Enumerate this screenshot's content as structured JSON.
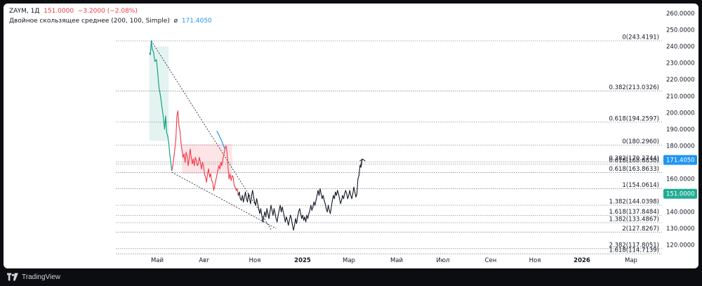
{
  "header": {
    "symbol": "ZAYM",
    "interval": "1Д",
    "last_price": "151.0000",
    "change": "−3.2000 (−2.08%)",
    "indicator_name": "Двойное скользящее среднее (200, 100, Simple)",
    "indicator_icon": "eye-slash-icon",
    "indicator_value": "171.4050"
  },
  "footer": {
    "brand": "TradingView",
    "brand_icon": "tradingview-logo-icon"
  },
  "colors": {
    "up": "#089981",
    "down": "#f23645",
    "price_line": "#131722",
    "ma_label": "#2196f3",
    "price_label": "#22ab94",
    "grid_dotted": "#787b86",
    "fill_green": "#e3f3ef",
    "fill_red": "#fde5e7"
  },
  "chart_data": {
    "type": "line",
    "title": "",
    "y_axis": {
      "side": "right",
      "ylim": [
        115,
        262
      ],
      "ticks": [
        "260.0000",
        "250.0000",
        "240.0000",
        "230.0000",
        "220.0000",
        "210.0000",
        "200.0000",
        "190.0000",
        "180.0000",
        "170.0000",
        "160.0000",
        "150.0000",
        "140.0000",
        "130.0000",
        "120.0000"
      ]
    },
    "x_axis": {
      "ticks": [
        "Май",
        "Авг",
        "Ноя",
        "2025",
        "Мар",
        "Май",
        "Июл",
        "Сен",
        "Ноя",
        "2026",
        "Мар"
      ],
      "bold_ticks": [
        "2025",
        "2026"
      ]
    },
    "price_labels": [
      {
        "value": 171.405,
        "text": "171.4050",
        "kind": "ma"
      },
      {
        "value": 151.0,
        "text": "151.0000",
        "kind": "last"
      }
    ],
    "fib_levels": [
      {
        "label": "0(243.4191)",
        "value": 243.4191,
        "group": "upper"
      },
      {
        "label": "0.382(213.0326)",
        "value": 213.0326,
        "group": "upper"
      },
      {
        "label": "0.618(194.2597)",
        "value": 194.2597,
        "group": "upper"
      },
      {
        "label": "0(180.2960)",
        "value": 180.296,
        "group": "upper"
      },
      {
        "label": "0.382(170.2744)",
        "value": 170.2744,
        "group": "lower"
      },
      {
        "label": "0.618(168.8830)",
        "value": 168.883,
        "group": "lower"
      },
      {
        "label": "0.618(163.8633)",
        "value": 163.8633,
        "group": "lower"
      },
      {
        "label": "1(154.0614)",
        "value": 154.0614,
        "group": "lower"
      },
      {
        "label": "1.382(144.0398)",
        "value": 144.0398,
        "group": "lower"
      },
      {
        "label": "1.618(137.8484)",
        "value": 137.8484,
        "group": "lower"
      },
      {
        "label": "1.382(133.4867)",
        "value": 133.4867,
        "group": "lower"
      },
      {
        "label": "2(127.8267)",
        "value": 127.8267,
        "group": "lower"
      },
      {
        "label": "2.382(117.8051)",
        "value": 117.8051,
        "group": "lower"
      },
      {
        "label": "1.618(114.7139)",
        "value": 114.7139,
        "group": "lower"
      }
    ],
    "series": [
      {
        "name": "ZAYM",
        "role": "price",
        "style": "green-red segments",
        "points": [
          [
            "2024-04-06",
            236
          ],
          [
            "2024-04-08",
            235
          ],
          [
            "2024-04-10",
            243.4
          ],
          [
            "2024-04-12",
            238
          ],
          [
            "2024-04-14",
            237
          ],
          [
            "2024-04-17",
            231
          ],
          [
            "2024-04-20",
            232
          ],
          [
            "2024-04-22",
            226
          ],
          [
            "2024-04-25",
            215
          ],
          [
            "2024-04-28",
            210
          ],
          [
            "2024-05-01",
            203
          ],
          [
            "2024-05-04",
            196
          ],
          [
            "2024-05-06",
            190
          ],
          [
            "2024-05-08",
            198
          ],
          [
            "2024-05-10",
            188
          ],
          [
            "2024-05-12",
            186
          ],
          [
            "2024-05-14",
            182
          ],
          [
            "2024-05-16",
            175
          ],
          [
            "2024-05-18",
            170
          ],
          [
            "2024-05-20",
            165
          ],
          [
            "2024-05-22",
            168
          ],
          [
            "2024-05-24",
            173
          ],
          [
            "2024-05-26",
            178
          ],
          [
            "2024-05-28",
            184
          ],
          [
            "2024-05-30",
            198
          ],
          [
            "2024-06-01",
            201
          ],
          [
            "2024-06-03",
            192
          ],
          [
            "2024-06-05",
            189
          ],
          [
            "2024-06-07",
            182
          ],
          [
            "2024-06-09",
            177
          ],
          [
            "2024-06-11",
            173
          ],
          [
            "2024-06-13",
            175
          ],
          [
            "2024-06-15",
            170
          ],
          [
            "2024-06-17",
            176
          ],
          [
            "2024-06-19",
            174
          ],
          [
            "2024-06-21",
            168
          ],
          [
            "2024-06-23",
            172
          ],
          [
            "2024-06-25",
            178
          ],
          [
            "2024-06-27",
            173
          ],
          [
            "2024-06-29",
            169
          ],
          [
            "2024-07-01",
            172
          ],
          [
            "2024-07-03",
            168
          ],
          [
            "2024-07-05",
            173
          ],
          [
            "2024-07-07",
            171
          ],
          [
            "2024-07-09",
            168
          ],
          [
            "2024-07-11",
            169
          ],
          [
            "2024-07-13",
            173
          ],
          [
            "2024-07-15",
            170
          ],
          [
            "2024-07-17",
            166
          ],
          [
            "2024-07-19",
            170
          ],
          [
            "2024-07-21",
            168
          ],
          [
            "2024-07-23",
            163
          ],
          [
            "2024-07-25",
            161
          ],
          [
            "2024-07-27",
            158
          ],
          [
            "2024-07-29",
            163
          ],
          [
            "2024-07-31",
            166
          ],
          [
            "2024-08-02",
            161
          ],
          [
            "2024-08-04",
            163
          ],
          [
            "2024-08-06",
            159
          ],
          [
            "2024-08-08",
            158
          ],
          [
            "2024-08-10",
            153
          ],
          [
            "2024-08-12",
            156
          ],
          [
            "2024-08-14",
            159
          ],
          [
            "2024-08-16",
            162
          ],
          [
            "2024-08-18",
            165
          ],
          [
            "2024-08-20",
            168
          ],
          [
            "2024-08-22",
            166
          ],
          [
            "2024-08-24",
            170
          ],
          [
            "2024-08-26",
            168
          ],
          [
            "2024-08-28",
            172
          ],
          [
            "2024-08-30",
            175
          ],
          [
            "2024-09-01",
            178
          ],
          [
            "2024-09-03",
            180
          ],
          [
            "2024-09-05",
            176
          ],
          [
            "2024-09-07",
            167
          ],
          [
            "2024-09-09",
            160
          ],
          [
            "2024-09-11",
            163
          ],
          [
            "2024-09-13",
            159
          ],
          [
            "2024-09-15",
            162
          ],
          [
            "2024-09-17",
            161
          ],
          [
            "2024-09-19",
            156
          ],
          [
            "2024-09-21",
            155
          ],
          [
            "2024-09-23",
            153
          ],
          [
            "2024-09-25",
            154
          ],
          [
            "2024-09-27",
            150
          ],
          [
            "2024-09-29",
            152
          ],
          [
            "2024-10-01",
            148
          ],
          [
            "2024-10-03",
            147
          ],
          [
            "2024-10-05",
            150
          ],
          [
            "2024-10-07",
            146
          ],
          [
            "2024-10-09",
            149
          ],
          [
            "2024-10-11",
            152
          ],
          [
            "2024-10-13",
            148
          ],
          [
            "2024-10-15",
            146
          ],
          [
            "2024-10-17",
            151
          ],
          [
            "2024-10-19",
            148
          ],
          [
            "2024-10-21",
            145
          ],
          [
            "2024-10-23",
            150
          ],
          [
            "2024-10-25",
            153
          ],
          [
            "2024-10-27",
            149
          ],
          [
            "2024-10-29",
            146
          ],
          [
            "2024-10-31",
            144
          ],
          [
            "2024-11-02",
            148
          ],
          [
            "2024-11-04",
            145
          ],
          [
            "2024-11-06",
            142
          ],
          [
            "2024-11-08",
            139
          ],
          [
            "2024-11-10",
            142
          ],
          [
            "2024-11-12",
            138
          ],
          [
            "2024-11-14",
            134
          ],
          [
            "2024-11-16",
            137
          ],
          [
            "2024-11-18",
            140
          ],
          [
            "2024-11-20",
            137
          ],
          [
            "2024-11-22",
            142
          ],
          [
            "2024-11-24",
            139
          ],
          [
            "2024-11-26",
            136
          ],
          [
            "2024-11-28",
            140
          ],
          [
            "2024-11-30",
            144
          ],
          [
            "2024-12-02",
            141
          ],
          [
            "2024-12-04",
            138
          ],
          [
            "2024-12-06",
            142
          ],
          [
            "2024-12-08",
            139
          ],
          [
            "2024-12-10",
            136
          ],
          [
            "2024-12-12",
            134
          ],
          [
            "2024-12-14",
            138
          ],
          [
            "2024-12-16",
            141
          ],
          [
            "2024-12-18",
            144
          ],
          [
            "2024-12-20",
            140
          ],
          [
            "2024-12-22",
            143
          ],
          [
            "2024-12-24",
            140
          ],
          [
            "2024-12-26",
            137
          ],
          [
            "2024-12-28",
            134
          ],
          [
            "2024-12-30",
            137
          ],
          [
            "2025-01-01",
            135
          ],
          [
            "2025-01-03",
            132
          ],
          [
            "2025-01-05",
            135
          ],
          [
            "2025-01-07",
            138
          ],
          [
            "2025-01-09",
            136
          ],
          [
            "2025-01-11",
            132
          ],
          [
            "2025-01-13",
            129
          ],
          [
            "2025-01-15",
            132
          ],
          [
            "2025-01-17",
            136
          ],
          [
            "2025-01-19",
            133
          ],
          [
            "2025-01-21",
            137
          ],
          [
            "2025-01-23",
            140
          ],
          [
            "2025-01-25",
            142
          ],
          [
            "2025-01-27",
            139
          ],
          [
            "2025-01-29",
            136
          ],
          [
            "2025-01-31",
            138
          ],
          [
            "2025-02-02",
            135
          ],
          [
            "2025-02-04",
            137
          ],
          [
            "2025-02-06",
            134
          ],
          [
            "2025-02-08",
            138
          ],
          [
            "2025-02-10",
            136
          ],
          [
            "2025-02-12",
            139
          ],
          [
            "2025-02-14",
            141
          ],
          [
            "2025-02-16",
            144
          ],
          [
            "2025-02-18",
            141
          ],
          [
            "2025-02-20",
            143
          ],
          [
            "2025-02-22",
            146
          ],
          [
            "2025-02-24",
            144
          ],
          [
            "2025-02-26",
            147
          ],
          [
            "2025-02-28",
            150
          ],
          [
            "2025-03-02",
            153
          ],
          [
            "2025-03-04",
            150
          ],
          [
            "2025-03-06",
            154
          ],
          [
            "2025-03-08",
            151
          ],
          [
            "2025-03-10",
            148
          ],
          [
            "2025-03-12",
            150
          ],
          [
            "2025-03-14",
            147
          ],
          [
            "2025-03-16",
            145
          ],
          [
            "2025-03-18",
            142
          ],
          [
            "2025-03-20",
            140
          ],
          [
            "2025-03-22",
            144
          ],
          [
            "2025-03-24",
            141
          ],
          [
            "2025-03-26",
            139
          ],
          [
            "2025-03-28",
            143
          ],
          [
            "2025-03-30",
            147
          ],
          [
            "2025-04-01",
            150
          ],
          [
            "2025-04-03",
            148
          ],
          [
            "2025-04-05",
            152
          ],
          [
            "2025-04-07",
            150
          ],
          [
            "2025-04-09",
            153
          ],
          [
            "2025-04-11",
            151
          ],
          [
            "2025-04-13",
            148
          ],
          [
            "2025-04-15",
            145
          ],
          [
            "2025-04-17",
            147
          ],
          [
            "2025-04-19",
            150
          ],
          [
            "2025-04-21",
            148
          ],
          [
            "2025-04-23",
            151
          ],
          [
            "2025-04-25",
            153
          ],
          [
            "2025-04-27",
            151
          ],
          [
            "2025-04-29",
            148
          ],
          [
            "2025-05-01",
            150
          ],
          [
            "2025-05-03",
            153
          ],
          [
            "2025-05-05",
            150
          ],
          [
            "2025-05-07",
            148
          ],
          [
            "2025-05-09",
            151
          ],
          [
            "2025-05-11",
            155
          ],
          [
            "2025-05-13",
            152
          ],
          [
            "2025-05-15",
            149
          ],
          [
            "2025-05-17",
            151
          ],
          [
            "2025-05-19",
            160
          ],
          [
            "2025-05-21",
            162
          ],
          [
            "2025-05-23",
            168
          ],
          [
            "2025-05-25",
            167
          ],
          [
            "2025-05-27",
            171.4
          ]
        ]
      },
      {
        "name": "Двойное скользящее среднее (200, 100, Simple)",
        "role": "ma",
        "points": [
          [
            "2024-08-16",
            189
          ],
          [
            "2024-08-24",
            184
          ],
          [
            "2024-09-01",
            178
          ]
        ]
      }
    ],
    "trendlines": [
      {
        "from": [
          "2024-04-10",
          243.4
        ],
        "to": [
          "2024-12-01",
          129
        ],
        "style": "dotted"
      },
      {
        "from": [
          "2024-05-20",
          164
        ],
        "to": [
          "2024-12-10",
          130
        ],
        "style": "dotted"
      }
    ],
    "shaded_regions": [
      {
        "from": "2024-04-06",
        "to": "2024-05-14",
        "low": 183,
        "high": 240,
        "color": "fill_green"
      },
      {
        "from": "2024-06-09",
        "to": "2024-09-15",
        "low": 163,
        "high": 181,
        "color": "fill_red"
      }
    ],
    "arrow": {
      "from": [
        "2025-05-24",
        168
      ],
      "to": [
        "2025-05-28",
        172
      ]
    },
    "grid": false,
    "legend": "top-left"
  }
}
